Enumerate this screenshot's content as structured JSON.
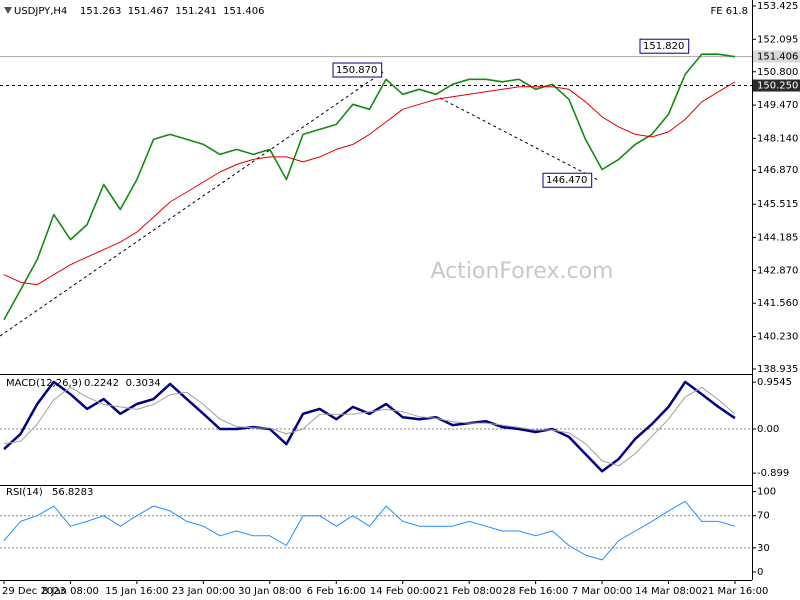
{
  "chart_data": [
    {
      "type": "line",
      "title": "USDJPY,H4",
      "ohlc": [
        151.263,
        151.467,
        151.241,
        151.406
      ],
      "fib_label": "FE 61.8",
      "watermark": "ActionForex.com",
      "xtick_labels": [
        "29 Dec 2023",
        "8 Jan 08:00",
        "15 Jan 16:00",
        "23 Jan 00:00",
        "30 Jan 08:00",
        "6 Feb 16:00",
        "14 Feb 00:00",
        "21 Feb 08:00",
        "28 Feb 16:00",
        "7 Mar 00:00",
        "14 Mar 08:00",
        "21 Mar 16:00"
      ],
      "ylim": [
        138.935,
        153.425
      ],
      "yticks": [
        153.425,
        152.095,
        {
          "value": 150.8,
          "label": "150.800"
        },
        {
          "value": 149.47,
          "label": "149.470"
        },
        {
          "value": 148.14,
          "label": "148.140"
        },
        {
          "value": 146.87,
          "label": "146.870"
        },
        145.515,
        144.185,
        {
          "value": 142.87,
          "label": "142.870"
        },
        {
          "value": 141.56,
          "label": "141.560"
        },
        {
          "value": 140.23,
          "label": "140.230"
        },
        138.935
      ],
      "price_lines": [
        {
          "value": 151.406,
          "style": "solid"
        },
        {
          "value": 150.25,
          "label": "150.250",
          "style": "dashed"
        }
      ],
      "annotations": [
        {
          "value": 150.87,
          "label": "150.870"
        },
        {
          "value": 151.82,
          "label": "151.820"
        },
        {
          "value": 146.47,
          "label": "146.470"
        }
      ],
      "series": [
        {
          "color": "#138a13",
          "values": [
            140.9,
            142.1,
            143.3,
            145.1,
            144.1,
            144.7,
            146.3,
            145.3,
            146.5,
            148.1,
            148.3,
            148.1,
            147.9,
            147.5,
            147.7,
            147.5,
            147.7,
            146.5,
            148.3,
            148.5,
            148.7,
            149.5,
            149.3,
            150.5,
            149.9,
            150.1,
            149.9,
            150.3,
            150.5,
            150.5,
            150.4,
            150.5,
            150.1,
            150.3,
            149.7,
            148.1,
            146.9,
            147.3,
            147.9,
            148.3,
            149.1,
            150.7,
            151.5,
            151.5,
            151.4
          ]
        },
        {
          "color": "#e00000",
          "values": [
            142.7,
            142.4,
            142.3,
            142.7,
            143.1,
            143.4,
            143.7,
            144.0,
            144.4,
            145.0,
            145.6,
            146.0,
            146.4,
            146.8,
            147.1,
            147.3,
            147.4,
            147.4,
            147.2,
            147.4,
            147.7,
            147.9,
            148.3,
            148.8,
            149.3,
            149.5,
            149.7,
            149.8,
            149.9,
            150.0,
            150.1,
            150.2,
            150.2,
            150.2,
            150.1,
            149.6,
            149.0,
            148.6,
            148.3,
            148.2,
            148.4,
            148.9,
            149.6,
            150.0,
            150.4
          ]
        }
      ]
    },
    {
      "type": "line",
      "title": "MACD(12,26,9)",
      "readout": [
        0.2242,
        0.3034
      ],
      "ylim": [
        -1.12,
        1.08
      ],
      "yticks": [
        0.9545,
        {
          "value": 0,
          "label": "0.00"
        },
        -0.899
      ],
      "levels": [
        0
      ],
      "series": [
        {
          "color": "#000080",
          "values": [
            -0.41,
            -0.1,
            0.51,
            0.96,
            0.71,
            0.41,
            0.61,
            0.31,
            0.51,
            0.61,
            0.92,
            0.61,
            0.31,
            0,
            0,
            0.04,
            0,
            -0.31,
            0.31,
            0.41,
            0.2,
            0.45,
            0.31,
            0.51,
            0.24,
            0.2,
            0.24,
            0.08,
            0.12,
            0.16,
            0.04,
            0,
            -0.06,
            0,
            -0.16,
            -0.51,
            -0.86,
            -0.61,
            -0.2,
            0.1,
            0.45,
            0.96,
            0.71,
            0.45,
            0.22
          ]
        },
        {
          "color": "#a0a0a0",
          "values": [
            -0.3,
            -0.25,
            0.1,
            0.6,
            0.85,
            0.65,
            0.5,
            0.45,
            0.4,
            0.5,
            0.7,
            0.75,
            0.5,
            0.2,
            0.05,
            0.02,
            0.02,
            -0.1,
            0,
            0.3,
            0.3,
            0.3,
            0.35,
            0.4,
            0.35,
            0.25,
            0.22,
            0.15,
            0.12,
            0.12,
            0.08,
            0.03,
            -0.02,
            -0.02,
            -0.08,
            -0.3,
            -0.65,
            -0.75,
            -0.5,
            -0.15,
            0.2,
            0.65,
            0.85,
            0.6,
            0.3
          ]
        }
      ]
    },
    {
      "type": "line",
      "title": "RSI(14)",
      "readout": [
        56.8283
      ],
      "ylim": [
        -10,
        107
      ],
      "yticks": [
        100,
        70,
        30,
        0
      ],
      "levels": [
        30,
        70
      ],
      "series": [
        {
          "color": "#1e90ff",
          "values": [
            39,
            63,
            70,
            82,
            57,
            63,
            70,
            57,
            70,
            82,
            76,
            63,
            57,
            45,
            51,
            45,
            45,
            33,
            70,
            70,
            57,
            70,
            57,
            82,
            63,
            57,
            57,
            57,
            63,
            57,
            51,
            51,
            45,
            51,
            33,
            21,
            15,
            39,
            51,
            63,
            76,
            88,
            63,
            63,
            57
          ]
        }
      ]
    }
  ]
}
